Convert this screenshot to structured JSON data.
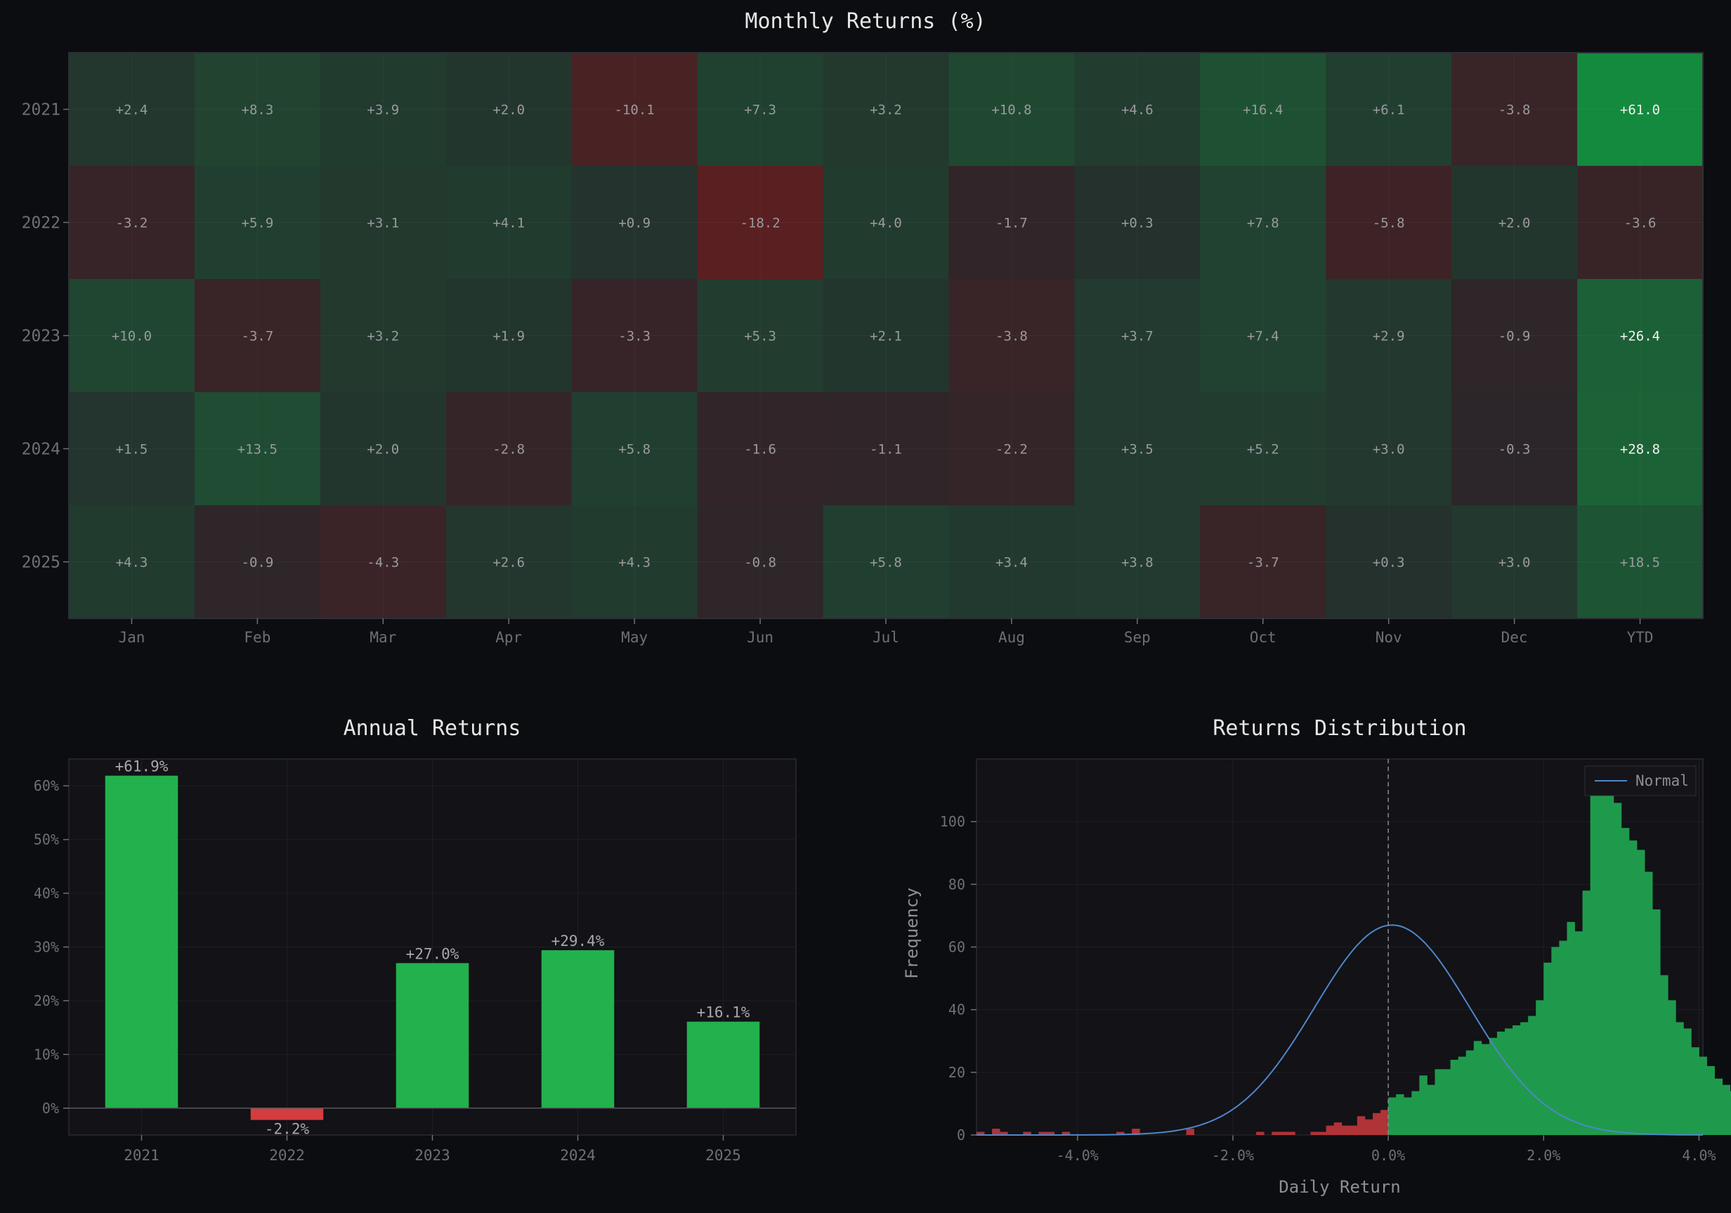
{
  "colors": {
    "background": "#0c0d11",
    "panel": "#121217",
    "grid": "#1e1f25",
    "text_title": "#e6e6e6",
    "text_axis": "#6f6f76",
    "text_cell": "#9a9aa0",
    "positive": "#22b14c",
    "negative": "#d43d3d",
    "hist_positive": "#1f9a4c",
    "hist_negative": "#b03338",
    "normal_line": "#4f87c8"
  },
  "chart_data": [
    {
      "type": "heatmap",
      "title": "Monthly Returns (%)",
      "rows": [
        "2021",
        "2022",
        "2023",
        "2024",
        "2025"
      ],
      "columns": [
        "Jan",
        "Feb",
        "Mar",
        "Apr",
        "May",
        "Jun",
        "Jul",
        "Aug",
        "Sep",
        "Oct",
        "Nov",
        "Dec",
        "YTD"
      ],
      "values": [
        [
          2.4,
          8.3,
          3.9,
          2.0,
          -10.1,
          7.3,
          3.2,
          10.8,
          4.6,
          16.4,
          6.1,
          -3.8,
          61.0
        ],
        [
          -3.2,
          5.9,
          3.1,
          4.1,
          0.9,
          -18.2,
          4.0,
          -1.7,
          0.3,
          7.8,
          -5.8,
          2.0,
          -3.6
        ],
        [
          10.0,
          -3.7,
          3.2,
          1.9,
          -3.3,
          5.3,
          2.1,
          -3.8,
          3.7,
          7.4,
          2.9,
          -0.9,
          26.4
        ],
        [
          1.5,
          13.5,
          2.0,
          -2.8,
          5.8,
          -1.6,
          -1.1,
          -2.2,
          3.5,
          5.2,
          3.0,
          -0.3,
          28.8
        ],
        [
          4.3,
          -0.9,
          -4.3,
          2.6,
          4.3,
          -0.8,
          5.8,
          3.4,
          3.8,
          -3.7,
          0.3,
          3.0,
          18.5
        ]
      ],
      "labels": [
        [
          "+2.4",
          "+8.3",
          "+3.9",
          "+2.0",
          "-10.1",
          "+7.3",
          "+3.2",
          "+10.8",
          "+4.6",
          "+16.4",
          "+6.1",
          "-3.8",
          "+61.0"
        ],
        [
          "-3.2",
          "+5.9",
          "+3.1",
          "+4.1",
          "+0.9",
          "-18.2",
          "+4.0",
          "-1.7",
          "+0.3",
          "+7.8",
          "-5.8",
          "+2.0",
          "-3.6"
        ],
        [
          "+10.0",
          "-3.7",
          "+3.2",
          "+1.9",
          "-3.3",
          "+5.3",
          "+2.1",
          "-3.8",
          "+3.7",
          "+7.4",
          "+2.9",
          "-0.9",
          "+26.4"
        ],
        [
          "+1.5",
          "+13.5",
          "+2.0",
          "-2.8",
          "+5.8",
          "-1.6",
          "-1.1",
          "-2.2",
          "+3.5",
          "+5.2",
          "+3.0",
          "-0.3",
          "+28.8"
        ],
        [
          "+4.3",
          "-0.9",
          "-4.3",
          "+2.6",
          "+4.3",
          "-0.8",
          "+5.8",
          "+3.4",
          "+3.8",
          "-3.7",
          "+0.3",
          "+3.0",
          "+18.5"
        ]
      ]
    },
    {
      "type": "bar",
      "title": "Annual Returns",
      "categories": [
        "2021",
        "2022",
        "2023",
        "2024",
        "2025"
      ],
      "values": [
        61.9,
        -2.2,
        27.0,
        29.4,
        16.1
      ],
      "labels": [
        "+61.9%",
        "-2.2%",
        "+27.0%",
        "+29.4%",
        "+16.1%"
      ],
      "ylim": [
        -5,
        65
      ],
      "yticks": [
        0,
        10,
        20,
        30,
        40,
        50,
        60
      ],
      "ytick_labels": [
        "0%",
        "10%",
        "20%",
        "30%",
        "40%",
        "50%",
        "60%"
      ],
      "grid": true
    },
    {
      "type": "histogram",
      "title": "Returns Distribution",
      "xlabel": "Daily Return",
      "ylabel": "Frequency",
      "xlim": [
        -5.3,
        4.05
      ],
      "ylim": [
        0,
        120
      ],
      "xticks": [
        -4.0,
        -2.0,
        0.0,
        2.0,
        4.0
      ],
      "xtick_labels": [
        "-4.0%",
        "-2.0%",
        "0.0%",
        "2.0%",
        "4.0%"
      ],
      "yticks": [
        0,
        20,
        40,
        60,
        80,
        100
      ],
      "ytick_labels": [
        "0",
        "20",
        "40",
        "60",
        "80",
        "100"
      ],
      "bin_start": -5.3,
      "bin_width": 0.1,
      "counts": [
        1,
        0,
        2,
        1,
        0,
        0,
        1,
        0,
        1,
        1,
        0,
        1,
        0,
        0,
        0,
        0,
        0,
        0,
        1,
        0,
        2,
        0,
        0,
        0,
        0,
        0,
        0,
        2,
        0,
        0,
        0,
        0,
        0,
        0,
        0,
        0,
        1,
        0,
        1,
        1,
        1,
        0,
        0,
        1,
        1,
        3,
        4,
        3,
        3,
        6,
        5,
        7,
        8,
        12,
        13,
        12,
        14,
        19,
        16,
        21,
        21,
        24,
        25,
        27,
        30,
        29,
        31,
        33,
        34,
        35,
        36,
        38,
        43,
        55,
        60,
        62,
        68,
        65,
        78,
        109,
        114,
        110,
        106,
        98,
        94,
        91,
        84,
        72,
        51,
        43,
        36,
        34,
        28,
        25,
        22,
        18,
        16,
        14,
        12,
        10,
        8,
        6,
        5,
        4,
        3,
        2,
        2,
        1,
        1,
        1,
        0,
        0,
        0,
        1,
        0,
        0,
        0,
        0,
        0,
        1,
        0,
        1,
        0,
        0,
        0,
        0,
        0,
        0,
        0,
        0,
        0,
        0,
        0,
        0,
        0,
        0,
        0,
        1
      ],
      "normal_mean": 0.05,
      "normal_sd": 1.0,
      "normal_peak": 67,
      "mean_line_x": 0.0,
      "legend": {
        "entries": [
          "Normal"
        ],
        "position": "top-right"
      },
      "grid": true
    }
  ]
}
